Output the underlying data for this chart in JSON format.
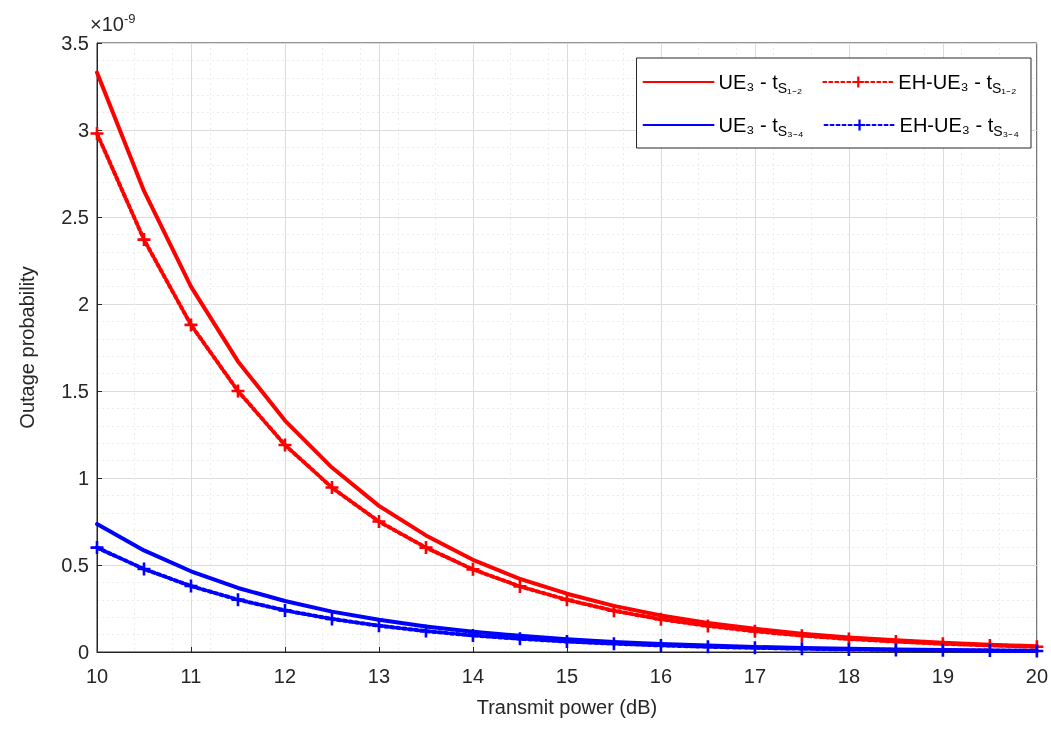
{
  "chart_data": {
    "type": "line",
    "xlabel": "Transmit power (dB)",
    "ylabel": "Outage probability",
    "annotations": [
      "×10$^{-9}$"
    ],
    "x": [
      10,
      10.5,
      11,
      11.5,
      12,
      12.5,
      13,
      13.5,
      14,
      14.5,
      15,
      15.5,
      16,
      16.5,
      17,
      17.5,
      18,
      18.5,
      19,
      19.5,
      20
    ],
    "series": [
      {
        "name": "UE₃ - t$_{S₁₋₂}$",
        "color": "#ff0000",
        "line_style": "solid",
        "marker": "none",
        "values": [
          3.33,
          2.65,
          2.1,
          1.67,
          1.33,
          1.06,
          0.84,
          0.67,
          0.53,
          0.42,
          0.335,
          0.265,
          0.21,
          0.167,
          0.133,
          0.105,
          0.084,
          0.067,
          0.053,
          0.042,
          0.033
        ]
      },
      {
        "name": "EH-UE₃ - t$_{S₁₋₂}$",
        "color": "#ff0000",
        "line_style": "dotted",
        "marker": "cross",
        "values": [
          2.98,
          2.37,
          1.88,
          1.5,
          1.19,
          0.945,
          0.75,
          0.6,
          0.475,
          0.377,
          0.3,
          0.237,
          0.188,
          0.15,
          0.119,
          0.094,
          0.075,
          0.06,
          0.047,
          0.038,
          0.03
        ]
      },
      {
        "name": "UE₃ - t$_{S₃₋₄}$",
        "color": "#0000ff",
        "line_style": "solid",
        "marker": "none",
        "values": [
          0.735,
          0.584,
          0.464,
          0.368,
          0.293,
          0.232,
          0.185,
          0.147,
          0.117,
          0.093,
          0.074,
          0.058,
          0.046,
          0.037,
          0.029,
          0.023,
          0.018,
          0.015,
          0.012,
          0.009,
          0.007
        ]
      },
      {
        "name": "EH-UE₃ - t$_{S₃₋₄}$",
        "color": "#0000ff",
        "line_style": "dotted",
        "marker": "cross",
        "values": [
          0.6,
          0.477,
          0.379,
          0.301,
          0.239,
          0.19,
          0.151,
          0.12,
          0.095,
          0.076,
          0.06,
          0.048,
          0.038,
          0.03,
          0.024,
          0.019,
          0.015,
          0.012,
          0.01,
          0.008,
          0.006
        ]
      }
    ],
    "xlim": [
      10,
      20
    ],
    "xticks": [
      10,
      11,
      12,
      13,
      14,
      15,
      16,
      17,
      18,
      19,
      20
    ],
    "ylim": [
      0,
      3.5
    ],
    "yticks": [
      0,
      0.5,
      1,
      1.5,
      2,
      2.5,
      3,
      3.5
    ],
    "grid": true,
    "legend": "top right"
  }
}
